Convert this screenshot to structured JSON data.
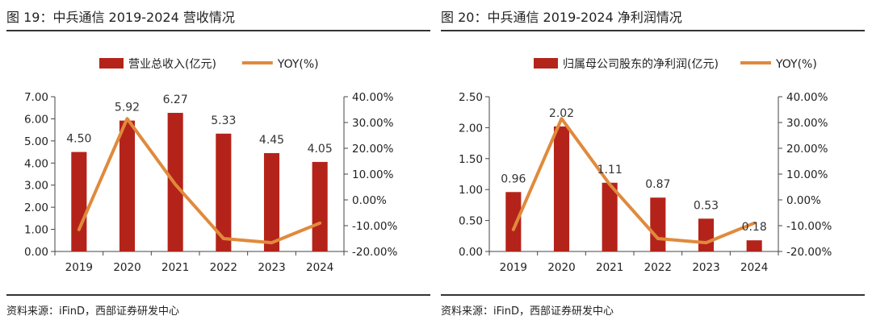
{
  "colors": {
    "bar": "#B4231A",
    "line": "#E08A3C",
    "axis": "#444444"
  },
  "chart_data": [
    {
      "type": "bar",
      "title": "图 19：中兵通信 2019-2024 营收情况",
      "source": "资料来源：iFinD，西部证券研发中心",
      "categories": [
        "2019",
        "2020",
        "2021",
        "2022",
        "2023",
        "2024"
      ],
      "series": [
        {
          "name": "营业总收入(亿元)",
          "type": "bar",
          "axis": "left",
          "values": [
            4.5,
            5.92,
            6.27,
            5.33,
            4.45,
            4.05
          ],
          "labels": [
            "4.50",
            "5.92",
            "6.27",
            "5.33",
            "4.45",
            "4.05"
          ]
        },
        {
          "name": "YOY(%)",
          "type": "line",
          "axis": "right",
          "values": [
            -11.5,
            31.5,
            6.0,
            -15.0,
            -16.6,
            -9.0
          ]
        }
      ],
      "ylim": [
        0,
        7
      ],
      "yticks": [
        "0.00",
        "1.00",
        "2.00",
        "3.00",
        "4.00",
        "5.00",
        "6.00",
        "7.00"
      ],
      "y2lim": [
        -20,
        40
      ],
      "y2ticks": [
        "-20.00%",
        "-10.00%",
        "0.00%",
        "10.00%",
        "20.00%",
        "30.00%",
        "40.00%"
      ],
      "legend": "top-center",
      "grid": false
    },
    {
      "type": "bar",
      "title": "图 20：中兵通信 2019-2024 净利润情况",
      "source": "资料来源：iFinD，西部证券研发中心",
      "categories": [
        "2019",
        "2020",
        "2021",
        "2022",
        "2023",
        "2024"
      ],
      "series": [
        {
          "name": "归属母公司股东的净利润(亿元)",
          "type": "bar",
          "axis": "left",
          "values": [
            0.96,
            2.02,
            1.11,
            0.87,
            0.53,
            0.18
          ],
          "labels": [
            "0.96",
            "2.02",
            "1.11",
            "0.87",
            "0.53",
            "0.18"
          ]
        },
        {
          "name": "YOY(%)",
          "type": "line",
          "axis": "right",
          "values": [
            -11.5,
            31.5,
            6.0,
            -15.0,
            -16.6,
            -9.0
          ]
        }
      ],
      "ylim": [
        0,
        2.5
      ],
      "yticks": [
        "0.00",
        "0.50",
        "1.00",
        "1.50",
        "2.00",
        "2.50"
      ],
      "y2lim": [
        -20,
        40
      ],
      "y2ticks": [
        "-20.00%",
        "-10.00%",
        "0.00%",
        "10.00%",
        "20.00%",
        "30.00%",
        "40.00%"
      ],
      "legend": "top-center",
      "grid": false
    }
  ]
}
